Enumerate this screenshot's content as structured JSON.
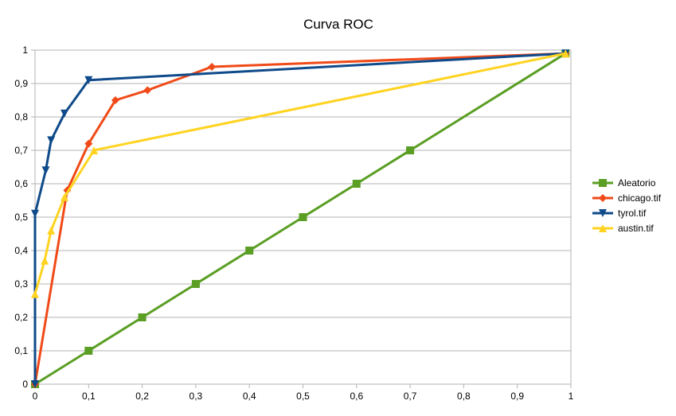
{
  "chart_data": {
    "type": "line",
    "title": "Curva ROC",
    "xlabel": "",
    "ylabel": "",
    "xlim": [
      0,
      1
    ],
    "ylim": [
      0,
      1
    ],
    "grid": "horizontal",
    "legend_position": "right",
    "x_ticks": [
      "0",
      "0,1",
      "0,2",
      "0,3",
      "0,4",
      "0,5",
      "0,6",
      "0,7",
      "0,8",
      "0,9",
      "1"
    ],
    "y_ticks": [
      "0",
      "0,1",
      "0,2",
      "0,3",
      "0,4",
      "0,5",
      "0,6",
      "0,7",
      "0,8",
      "0,9",
      "1"
    ],
    "series": [
      {
        "name": "Aleatorio",
        "color": "#5a9e23",
        "marker": "square",
        "points": [
          [
            0,
            0
          ],
          [
            0.1,
            0.1
          ],
          [
            0.2,
            0.2
          ],
          [
            0.3,
            0.3
          ],
          [
            0.4,
            0.4
          ],
          [
            0.5,
            0.5
          ],
          [
            0.6,
            0.6
          ],
          [
            0.7,
            0.7
          ],
          [
            0.99,
            0.99
          ]
        ]
      },
      {
        "name": "chicago.tif",
        "color": "#f04a18",
        "marker": "diamond",
        "points": [
          [
            0,
            0
          ],
          [
            0.06,
            0.58
          ],
          [
            0.1,
            0.72
          ],
          [
            0.15,
            0.85
          ],
          [
            0.21,
            0.88
          ],
          [
            0.33,
            0.95
          ],
          [
            0.99,
            0.99
          ]
        ]
      },
      {
        "name": "tyrol.tif",
        "color": "#0f4a8a",
        "marker": "triangle-down",
        "points": [
          [
            0,
            0
          ],
          [
            0,
            0.51
          ],
          [
            0.02,
            0.64
          ],
          [
            0.03,
            0.73
          ],
          [
            0.055,
            0.81
          ],
          [
            0.1,
            0.91
          ],
          [
            0.99,
            0.99
          ]
        ]
      },
      {
        "name": "austin.tif",
        "color": "#ffd320",
        "marker": "triangle-up",
        "points": [
          [
            0,
            0.27
          ],
          [
            0.018,
            0.37
          ],
          [
            0.03,
            0.46
          ],
          [
            0.055,
            0.56
          ],
          [
            0.11,
            0.7
          ],
          [
            0.99,
            0.99
          ]
        ]
      }
    ]
  }
}
